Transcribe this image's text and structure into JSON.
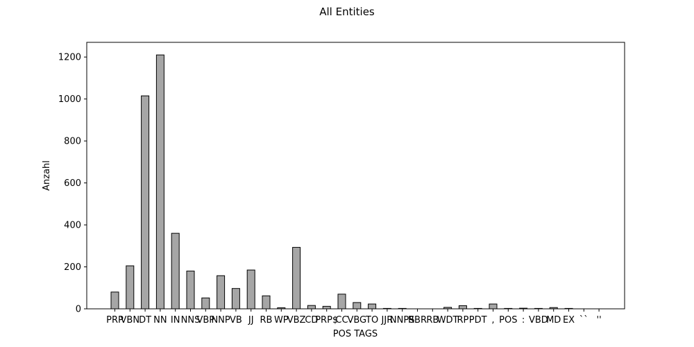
{
  "chart_data": {
    "type": "bar",
    "title": "All Entities",
    "xlabel": "POS TAGS",
    "ylabel": "Anzahl",
    "categories": [
      "PRP",
      "VBN",
      "DT",
      "NN",
      "IN",
      "NNS",
      "VBP",
      "NNP",
      "VB",
      "JJ",
      "RB",
      "WP",
      "VBZ",
      "CD",
      "PRP$",
      "CC",
      "VBG",
      "TO",
      "JJR",
      "NNPS",
      "RBR",
      "RB",
      "WDT",
      "RP",
      "PDT",
      ",",
      "POS",
      ":",
      "VBD",
      "MD",
      "EX",
      "``",
      "''"
    ],
    "values": [
      80,
      205,
      1015,
      1210,
      360,
      180,
      52,
      158,
      97,
      185,
      62,
      5,
      293,
      16,
      12,
      70,
      30,
      23,
      2,
      2,
      0,
      0,
      7,
      15,
      2,
      23,
      2,
      3,
      2,
      6,
      2,
      0,
      0
    ],
    "ylim": [
      0,
      1270
    ],
    "yticks": [
      0,
      200,
      400,
      600,
      800,
      1000,
      1200
    ],
    "grid": false,
    "legend": "none",
    "bar_color": "#a6a6a6",
    "edge_color": "#000000"
  }
}
